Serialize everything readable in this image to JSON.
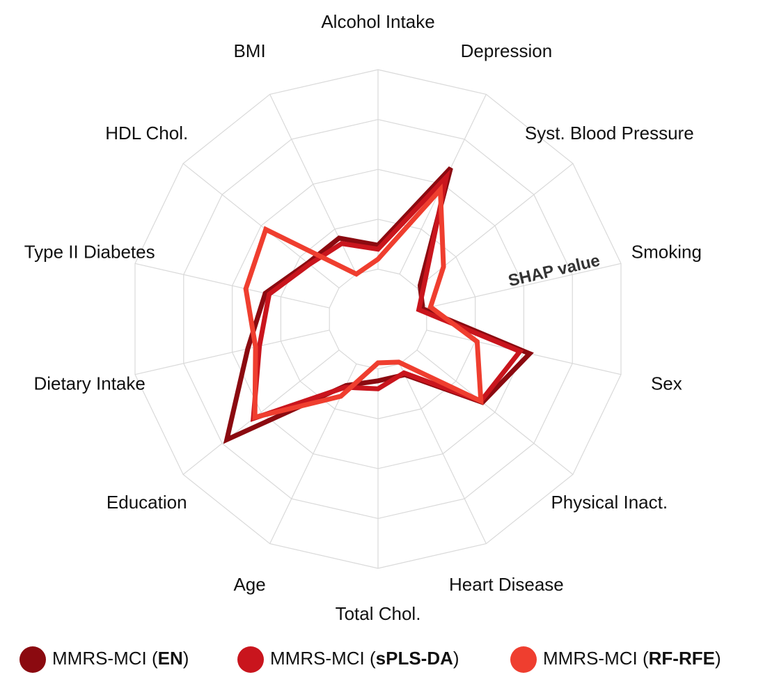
{
  "chart_data": {
    "type": "radar",
    "radial_axis_label": "SHAP value",
    "categories": [
      "Alcohol Intake",
      "Depression",
      "Syst. Blood Pressure",
      "Smoking",
      "Sex",
      "Physical Inact.",
      "Heart Disease",
      "Total Chol.",
      "Age",
      "Education",
      "Dietary Intake",
      "Type II Diabetes",
      "HDL Chol.",
      "BMI"
    ],
    "series": [
      {
        "name": "MMRS-MCI (EN)",
        "color": "#8b0a10",
        "values": [
          0.12,
          0.59,
          0.02,
          -0.02,
          0.53,
          0.42,
          0.06,
          0.06,
          0.12,
          0.72,
          0.42,
          0.33,
          0.2,
          0.2
        ]
      },
      {
        "name": "MMRS-MCI (sPLS-DA)",
        "color": "#c9151d",
        "values": [
          0.1,
          0.54,
          0.05,
          -0.04,
          0.48,
          0.41,
          0.05,
          0.1,
          0.13,
          0.55,
          0.36,
          0.31,
          0.19,
          0.17
        ]
      },
      {
        "name": "MMRS-MCI (RF-RFE)",
        "color": "#ef3e2f",
        "values": [
          0.05,
          0.47,
          0.17,
          0.02,
          0.26,
          0.41,
          -0.01,
          -0.03,
          0.18,
          0.54,
          0.38,
          0.43,
          0.47,
          0.0
        ]
      }
    ],
    "ylim": [
      -0.25,
      1
    ],
    "yticks": [
      0,
      0.25,
      0.5,
      0.75,
      1
    ],
    "grid": true
  }
}
